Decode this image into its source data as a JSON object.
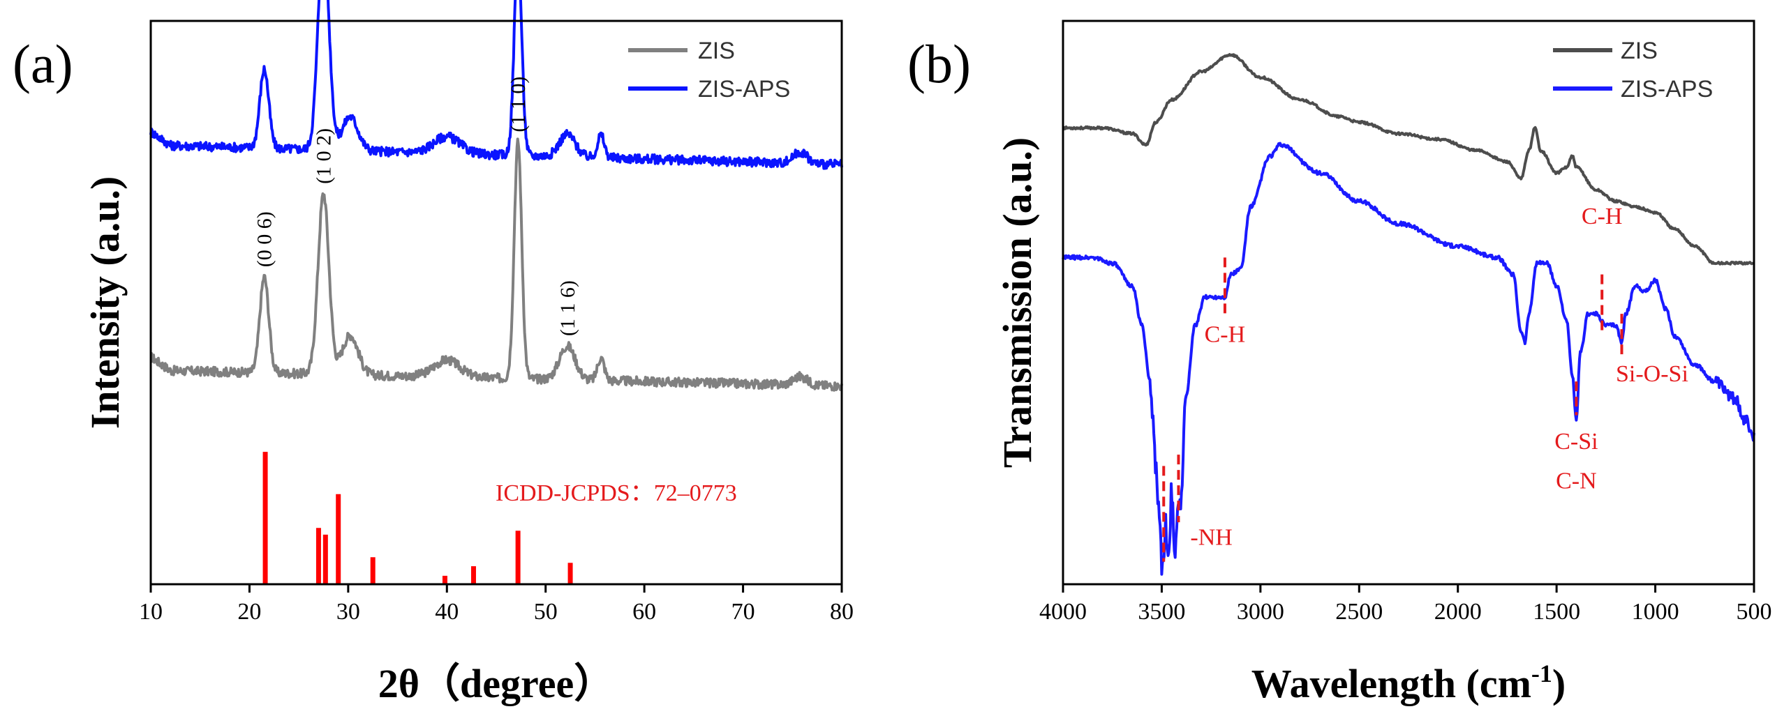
{
  "colors": {
    "zis": "#808080",
    "zis_aps_a": "#0a14ff",
    "zis_b": "#4d4d4d",
    "zis_aps_b": "#1a1aff",
    "ref": "#ff0000",
    "annotation": "#e41a1c"
  },
  "chart_data": [
    {
      "type": "line",
      "panel_label": "(a)",
      "xlabel": "2θ（degree）",
      "ylabel": "Intensity (a.u.)",
      "xlim": [
        10,
        80
      ],
      "x_ticks": [
        "10",
        "20",
        "30",
        "40",
        "50",
        "60",
        "70",
        "80"
      ],
      "legend": {
        "position": "top-right",
        "entries": [
          "ZIS",
          "ZIS-APS"
        ]
      },
      "series": [
        {
          "name": "ZIS",
          "color": "#808080",
          "baseline": 0.38,
          "slope": -0.0004,
          "peaks": [
            [
              21.5,
              0.17,
              0.45
            ],
            [
              27.5,
              0.32,
              0.55
            ],
            [
              30.2,
              0.07,
              0.8
            ],
            [
              40.0,
              0.03,
              1.3
            ],
            [
              47.2,
              0.42,
              0.38
            ],
            [
              52.2,
              0.06,
              0.8
            ],
            [
              55.6,
              0.04,
              0.35
            ],
            [
              75.8,
              0.015,
              0.7
            ]
          ]
        },
        {
          "name": "ZIS-APS",
          "color": "#0a14ff",
          "baseline": 0.78,
          "slope": -0.0005,
          "peaks": [
            [
              21.5,
              0.14,
              0.45
            ],
            [
              27.5,
              0.38,
              0.55
            ],
            [
              30.2,
              0.06,
              0.8
            ],
            [
              40.0,
              0.03,
              1.3
            ],
            [
              47.2,
              0.36,
              0.38
            ],
            [
              52.2,
              0.04,
              0.8
            ],
            [
              55.6,
              0.04,
              0.35
            ],
            [
              75.8,
              0.02,
              0.7
            ]
          ]
        }
      ],
      "reference_pattern": {
        "name": "ICDD-JCPDS：72–0773",
        "sticks": [
          [
            21.6,
            0.235
          ],
          [
            27.0,
            0.1
          ],
          [
            27.7,
            0.088
          ],
          [
            29.0,
            0.16
          ],
          [
            32.5,
            0.048
          ],
          [
            39.8,
            0.015
          ],
          [
            42.7,
            0.032
          ],
          [
            47.2,
            0.095
          ],
          [
            52.5,
            0.038
          ]
        ]
      },
      "peak_labels": [
        {
          "text": "(0 0 6)",
          "x": 21.5
        },
        {
          "text": "(1 0 2)",
          "x": 27.5
        },
        {
          "text": "(1 1 0)",
          "x": 47.2
        },
        {
          "text": "(1 1 6)",
          "x": 52.2
        }
      ]
    },
    {
      "type": "line",
      "panel_label": "(b)",
      "xlabel": "Wavelength (cm",
      "xlabel_sup": "-1",
      "xlabel_end": ")",
      "ylabel": "Transmission (a.u.)",
      "xlim": [
        4000,
        500
      ],
      "x_ticks": [
        "4000",
        "3500",
        "3000",
        "2500",
        "2000",
        "1500",
        "1000",
        "500"
      ],
      "legend": {
        "position": "top-right",
        "entries": [
          "ZIS",
          "ZIS-APS"
        ]
      },
      "series": [
        {
          "name": "ZIS",
          "color": "#4d4d4d",
          "x": [
            4000,
            3800,
            3650,
            3580,
            3530,
            3450,
            3300,
            3150,
            3000,
            2800,
            2600,
            2500,
            2300,
            2100,
            1900,
            1750,
            1680,
            1640,
            1610,
            1580,
            1500,
            1450,
            1420,
            1400,
            1300,
            1200,
            1100,
            1000,
            900,
            800,
            700,
            600,
            500
          ],
          "y": [
            0.81,
            0.81,
            0.8,
            0.78,
            0.82,
            0.86,
            0.91,
            0.94,
            0.9,
            0.86,
            0.83,
            0.82,
            0.8,
            0.79,
            0.77,
            0.75,
            0.72,
            0.77,
            0.81,
            0.77,
            0.73,
            0.74,
            0.76,
            0.74,
            0.7,
            0.68,
            0.67,
            0.66,
            0.63,
            0.6,
            0.57,
            0.57,
            0.57
          ]
        },
        {
          "name": "ZIS-APS",
          "color": "#1a1aff",
          "x": [
            4000,
            3850,
            3750,
            3650,
            3600,
            3560,
            3530,
            3510,
            3495,
            3480,
            3465,
            3450,
            3435,
            3420,
            3400,
            3380,
            3330,
            3280,
            3230,
            3180,
            3150,
            3100,
            3050,
            2950,
            2900,
            2700,
            2500,
            2300,
            2000,
            1800,
            1720,
            1680,
            1660,
            1640,
            1600,
            1550,
            1500,
            1450,
            1420,
            1400,
            1380,
            1340,
            1300,
            1250,
            1200,
            1170,
            1150,
            1100,
            1050,
            1000,
            950,
            900,
            800,
            700,
            600,
            540,
            500
          ],
          "y": [
            0.58,
            0.58,
            0.57,
            0.53,
            0.46,
            0.36,
            0.22,
            0.1,
            0.02,
            0.1,
            0.04,
            0.17,
            0.06,
            0.13,
            0.16,
            0.33,
            0.46,
            0.51,
            0.51,
            0.51,
            0.55,
            0.56,
            0.67,
            0.76,
            0.78,
            0.73,
            0.68,
            0.64,
            0.6,
            0.58,
            0.55,
            0.45,
            0.43,
            0.48,
            0.57,
            0.57,
            0.53,
            0.47,
            0.37,
            0.29,
            0.41,
            0.48,
            0.48,
            0.46,
            0.46,
            0.43,
            0.48,
            0.53,
            0.52,
            0.54,
            0.49,
            0.44,
            0.39,
            0.36,
            0.33,
            0.29,
            0.26
          ]
        }
      ],
      "markers": [
        {
          "x": 3180,
          "y_top": 0.58,
          "y_bot": 0.48
        },
        {
          "x": 3490,
          "y_top": 0.21,
          "y_bot": 0.04
        },
        {
          "x": 3415,
          "y_top": 0.23,
          "y_bot": 0.11
        },
        {
          "x": 1400,
          "y_top": 0.36,
          "y_bot": 0.3
        },
        {
          "x": 1270,
          "y_top": 0.55,
          "y_bot": 0.45
        },
        {
          "x": 1170,
          "y_top": 0.48,
          "y_bot": 0.4
        }
      ],
      "annotations": [
        {
          "text": "C-H",
          "x": 3180,
          "y": 0.43,
          "anchor": "middle"
        },
        {
          "text": "-NH",
          "x": 3355,
          "y": 0.07,
          "anchor": "start"
        },
        {
          "text": "C-H",
          "x": 1270,
          "y": 0.64,
          "anchor": "middle"
        },
        {
          "text": "Si-O-Si",
          "x": 1200,
          "y": 0.36,
          "anchor": "start"
        },
        {
          "text": "C-Si",
          "x": 1400,
          "y": 0.24,
          "anchor": "middle"
        },
        {
          "text": "C-N",
          "x": 1400,
          "y": 0.17,
          "anchor": "middle"
        }
      ]
    }
  ]
}
